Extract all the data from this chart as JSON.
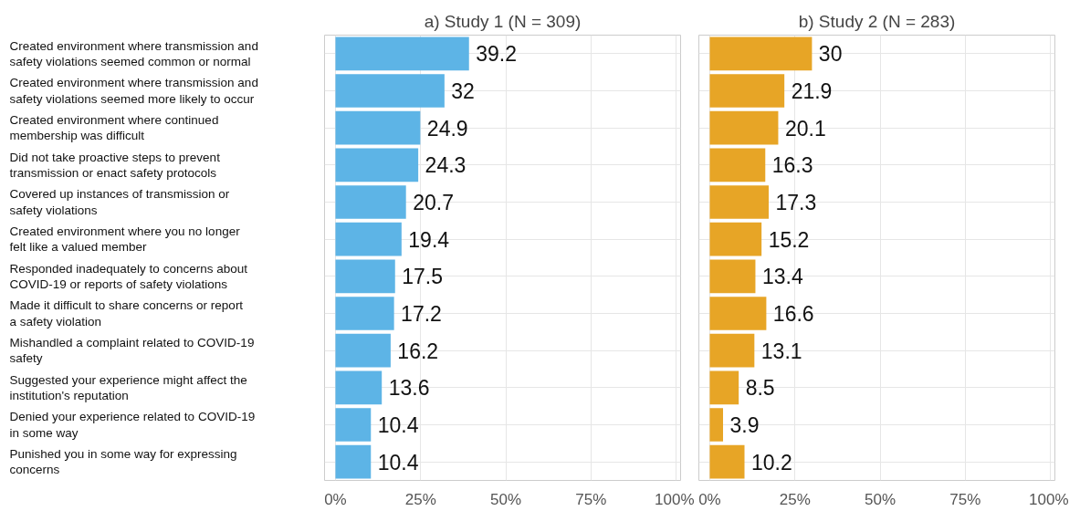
{
  "chart_data": [
    {
      "type": "bar",
      "orientation": "horizontal",
      "title": "a) Study 1 (N = 309)",
      "categories": [
        "Created environment where transmission and\nsafety violations seemed common or normal",
        "Created environment where transmission and\nsafety violations seemed more likely to occur",
        "Created environment where continued\nmembership was difficult",
        "Did not take proactive steps to prevent\ntransmission or enact safety protocols",
        "Covered up instances of transmission or\nsafety violations",
        "Created environment where you no longer\nfelt like a valued member",
        "Responded inadequately to concerns about\nCOVID-19 or reports of safety violations",
        "Made it difficult to share concerns or report\na safety violation",
        "Mishandled a complaint related to COVID-19\nsafety",
        "Suggested your experience might affect the\ninstitution's reputation",
        "Denied your experience related to COVID-19\nin some way",
        "Punished you in some way for expressing\nconcerns"
      ],
      "values": [
        39.2,
        32,
        24.9,
        24.3,
        20.7,
        19.4,
        17.5,
        17.2,
        16.2,
        13.6,
        10.4,
        10.4
      ],
      "color": "#5db4e6",
      "data_labels": true,
      "grid": true,
      "xlim": [
        -3.2,
        101.3
      ],
      "xticks": [
        {
          "value": 0,
          "label": "0%"
        },
        {
          "value": 25,
          "label": "25%"
        },
        {
          "value": 50,
          "label": "50%"
        },
        {
          "value": 75,
          "label": "75%"
        },
        {
          "value": 100,
          "label": "100%"
        }
      ]
    },
    {
      "type": "bar",
      "orientation": "horizontal",
      "title": "b) Study 2 (N = 283)",
      "categories": [
        "Created environment where transmission and\nsafety violations seemed common or normal",
        "Created environment where transmission and\nsafety violations seemed more likely to occur",
        "Created environment where continued\nmembership was difficult",
        "Did not take proactive steps to prevent\ntransmission or enact safety protocols",
        "Covered up instances of transmission or\nsafety violations",
        "Created environment where you no longer\nfelt like a valued member",
        "Responded inadequately to concerns about\nCOVID-19 or reports of safety violations",
        "Made it difficult to share concerns or report\na safety violation",
        "Mishandled a complaint related to COVID-19\nsafety",
        "Suggested your experience might affect the\ninstitution's reputation",
        "Denied your experience related to COVID-19\nin some way",
        "Punished you in some way for expressing\nconcerns"
      ],
      "values": [
        30,
        21.9,
        20.1,
        16.3,
        17.3,
        15.2,
        13.4,
        16.6,
        13.1,
        8.5,
        3.9,
        10.2
      ],
      "color": "#e7a526",
      "data_labels": true,
      "grid": true,
      "tick_labels": "x",
      "xlim": [
        -3.2,
        101.3
      ],
      "xticks": [
        {
          "value": 0,
          "label": "0%"
        },
        {
          "value": 25,
          "label": "25%"
        },
        {
          "value": 50,
          "label": "50%"
        },
        {
          "value": 75,
          "label": "75%"
        },
        {
          "value": 100,
          "label": "100%"
        }
      ]
    }
  ]
}
